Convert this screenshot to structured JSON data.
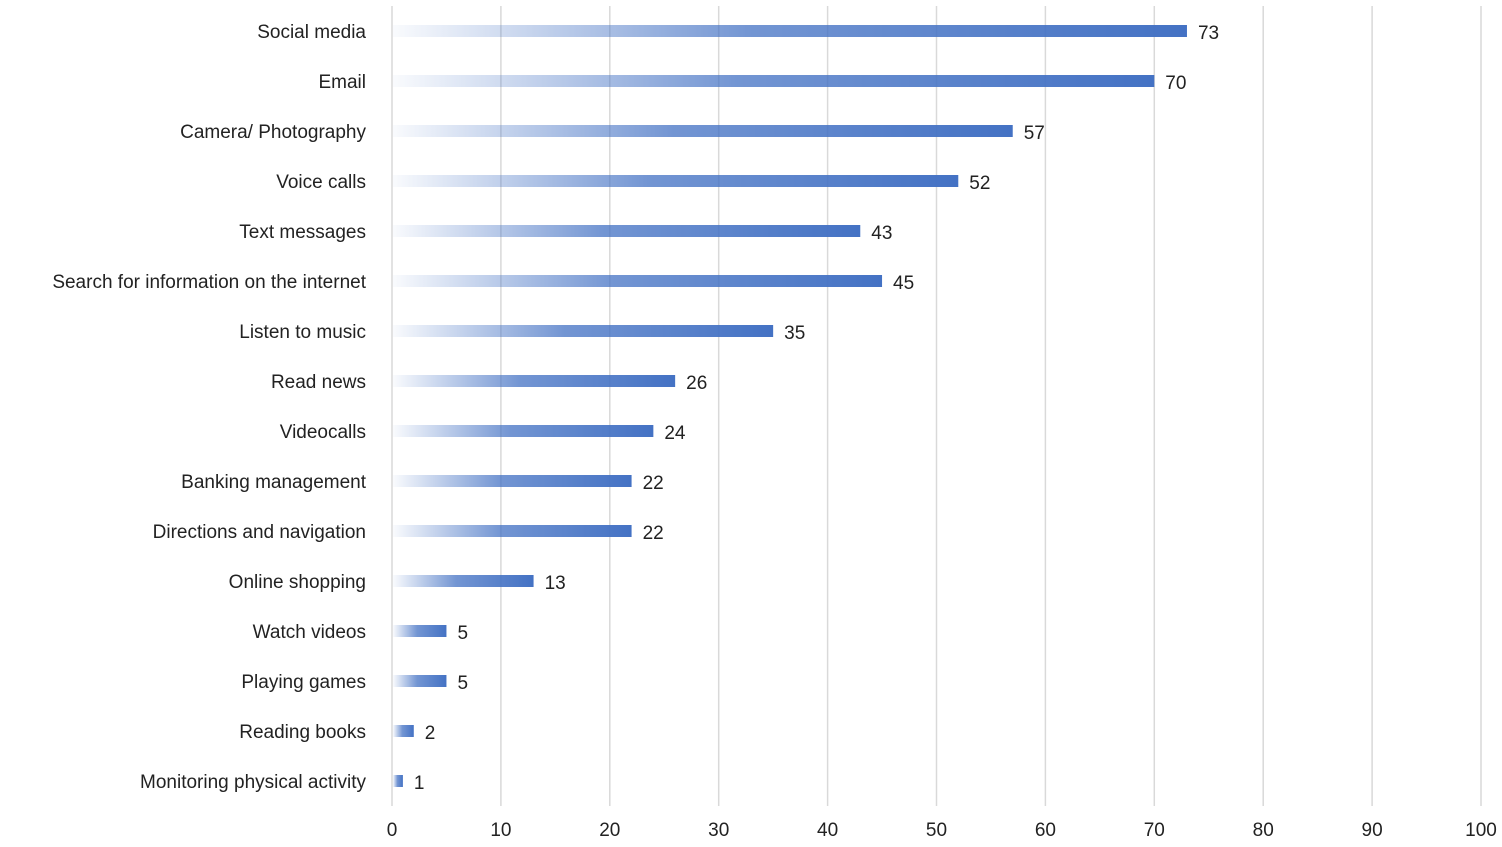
{
  "chart_data": {
    "type": "bar",
    "orientation": "horizontal",
    "categories": [
      "Social media",
      "Email",
      "Camera/ Photography",
      "Voice calls",
      "Text messages",
      "Search for information on the internet",
      "Listen to music",
      "Read news",
      "Videocalls",
      "Banking management",
      "Directions and navigation",
      "Online shopping",
      "Watch videos",
      "Playing games",
      "Reading books",
      "Monitoring physical activity"
    ],
    "values": [
      73,
      70,
      57,
      52,
      43,
      45,
      35,
      26,
      24,
      22,
      22,
      13,
      5,
      5,
      2,
      1
    ],
    "xlim": [
      0,
      100
    ],
    "xticks": [
      0,
      10,
      20,
      30,
      40,
      50,
      60,
      70,
      80,
      90,
      100
    ],
    "grid": true,
    "title": "",
    "xlabel": "",
    "ylabel": "",
    "bar_color": "#4472c4",
    "grid_color": "#d9d9d9"
  }
}
